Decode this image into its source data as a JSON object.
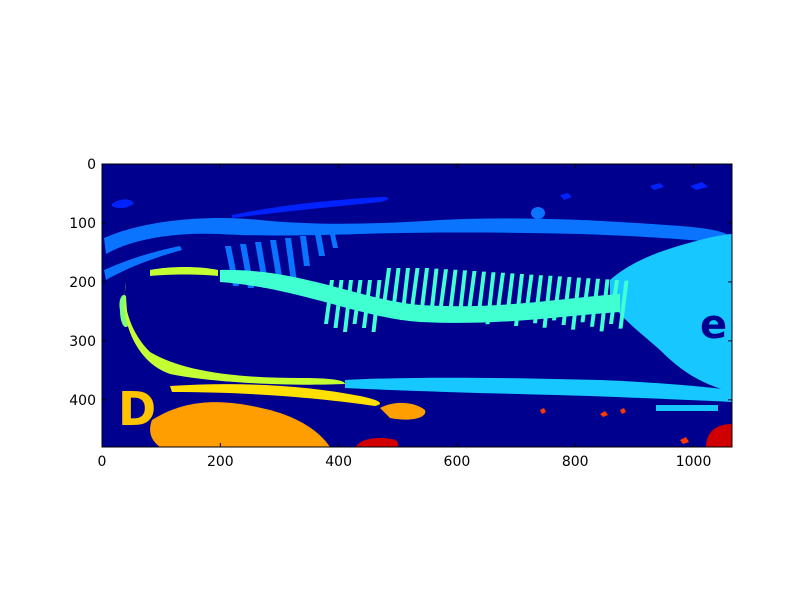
{
  "figure": {
    "panel_letter": "D",
    "inset_letter": "e",
    "x_ticks": [
      "0",
      "200",
      "400",
      "600",
      "800",
      "1000"
    ],
    "y_ticks": [
      "0",
      "100",
      "200",
      "300",
      "400"
    ],
    "x_range": [
      0,
      1065
    ],
    "y_range": [
      0,
      480
    ],
    "background_color": "#00008f",
    "colors": {
      "navy": "#00008f",
      "blue": "#0022ff",
      "mid_blue": "#0a74ff",
      "cyan": "#16c8ff",
      "aqua": "#40ffd0",
      "green": "#7dff7d",
      "yellow_green": "#c4ff33",
      "yellow": "#ffe000",
      "orange": "#ff9e00",
      "red_orange": "#ff3800",
      "red": "#d00000"
    }
  }
}
